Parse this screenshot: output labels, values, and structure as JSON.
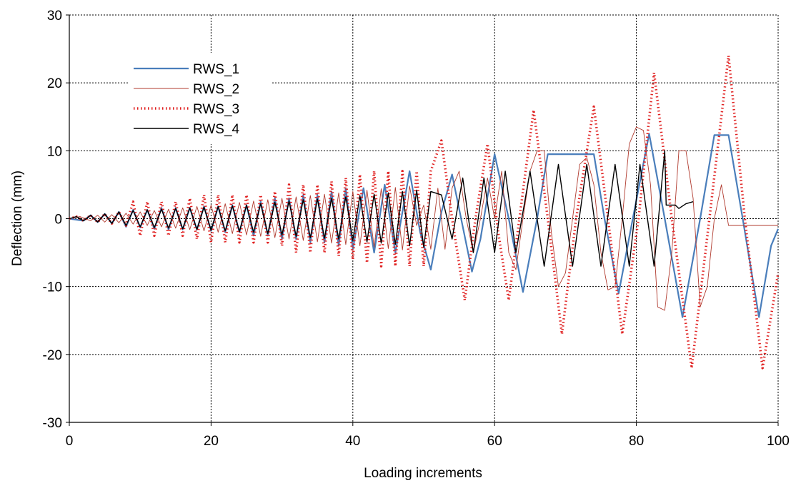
{
  "chart_data": {
    "type": "line",
    "title": "",
    "xlabel": "Loading increments",
    "ylabel": "Deflection (mm)",
    "xlim": [
      0,
      100
    ],
    "ylim": [
      -30,
      30
    ],
    "xticks": [
      0,
      20,
      40,
      60,
      80,
      100
    ],
    "yticks": [
      -30,
      -20,
      -10,
      0,
      10,
      20,
      30
    ],
    "grid": "dotted",
    "legend_position": "top-left",
    "series": [
      {
        "name": "RWS_1",
        "color": "#4a7ebb",
        "style": "solid",
        "x": [
          0,
          2,
          3,
          4,
          5,
          6,
          7,
          8,
          9,
          10,
          11,
          12,
          13,
          14,
          15,
          16,
          17,
          18,
          19,
          20,
          21,
          22,
          23,
          24,
          25,
          26,
          27,
          28,
          29,
          30,
          31,
          32,
          33,
          34,
          35,
          36,
          37,
          38,
          39,
          40,
          41.5,
          43,
          44.5,
          46,
          48,
          49.5,
          51,
          52.5,
          54,
          56.8,
          58,
          60,
          62,
          64,
          66,
          67.5,
          74,
          75.5,
          77.5,
          79.5,
          81.8,
          84,
          86.5,
          89,
          91,
          93,
          95,
          97.3,
          99,
          100
        ],
        "y": [
          0,
          -0.3,
          0.5,
          -0.5,
          0.7,
          -0.7,
          1,
          -1.2,
          1.3,
          -1.3,
          1.3,
          -1.5,
          1.6,
          -1.6,
          1.6,
          -1.6,
          1.6,
          -1.6,
          1.8,
          -1.8,
          1.8,
          -2,
          2,
          -2,
          2,
          -2.5,
          2.5,
          -2.5,
          3,
          -3,
          3,
          -3,
          3.5,
          -3.5,
          3.5,
          -3.5,
          4,
          -4,
          4.5,
          -4.5,
          4.5,
          -5,
          5,
          -5,
          7,
          -2,
          -7.5,
          1,
          6.5,
          -7.8,
          -3,
          9.5,
          0,
          -10.8,
          0,
          9.5,
          9.5,
          0,
          -11,
          0,
          12.5,
          0,
          -14.5,
          0,
          12.3,
          12.3,
          0,
          -14.5,
          -4,
          -1.5
        ]
      },
      {
        "name": "RWS_2",
        "color": "#b03a2e",
        "style": "thin",
        "x": [
          0,
          1.5,
          3,
          4,
          5,
          6,
          7,
          8,
          9,
          10,
          11,
          12,
          13,
          14,
          15,
          16,
          17,
          18,
          19,
          20,
          21,
          22,
          23,
          24,
          25,
          26,
          27,
          28,
          29,
          30,
          31,
          32,
          33,
          34,
          35,
          36,
          37,
          38,
          39,
          40,
          41,
          42,
          43,
          44,
          45,
          46,
          47,
          48,
          49,
          50,
          51,
          52,
          53,
          54,
          55,
          56,
          57,
          58,
          59,
          60,
          61,
          62,
          63,
          64,
          65,
          66,
          67,
          68,
          69,
          70,
          71,
          72,
          73,
          74,
          75,
          76,
          77,
          78,
          79,
          80,
          81,
          82,
          83,
          84,
          85,
          86,
          87,
          88,
          89,
          90,
          91,
          92,
          93,
          94,
          95,
          96,
          97,
          98,
          99,
          100
        ],
        "y": [
          0,
          0.3,
          -0.3,
          0.5,
          -0.5,
          0.6,
          -0.6,
          0.8,
          -0.8,
          1,
          -1,
          1.2,
          -1.2,
          1.4,
          -1.4,
          1.6,
          -1.6,
          1.8,
          -1.8,
          2,
          -2,
          2.2,
          -2.2,
          2.4,
          -2.4,
          2.6,
          -2.6,
          2.8,
          -2.8,
          3,
          -3,
          3.2,
          -3.2,
          3.4,
          -3.4,
          3.6,
          -3.6,
          3.8,
          -3.8,
          4,
          -4,
          4.2,
          -4.2,
          4.4,
          -4.4,
          4.6,
          -4.6,
          4.8,
          -1,
          2,
          -4.5,
          4.5,
          -4.5,
          4.5,
          7,
          0,
          -5,
          0,
          6,
          0,
          7,
          -5,
          -7.5,
          0,
          7,
          10,
          10,
          -2,
          -10,
          -8,
          0,
          8,
          9,
          5,
          -5,
          -10.5,
          -10,
          0,
          11,
          13.5,
          13,
          5,
          -13,
          -13.5,
          -5,
          10,
          10,
          3,
          -13,
          -10,
          0,
          5,
          -1,
          -1,
          -1,
          -1,
          -1,
          -1,
          -1,
          -1
        ]
      },
      {
        "name": "RWS_3",
        "color": "#e02020",
        "style": "dotted",
        "x": [
          0,
          1,
          2,
          3,
          4,
          5,
          6,
          7,
          8,
          9,
          10,
          11,
          12,
          13,
          14,
          15,
          16,
          17,
          18,
          19,
          20,
          21,
          22,
          23,
          24,
          25,
          26,
          27,
          28,
          29,
          30,
          31,
          32,
          33,
          34,
          35,
          36,
          37,
          38,
          39,
          40,
          41,
          42,
          43,
          44,
          45,
          46,
          47,
          48,
          49,
          50,
          51,
          52.5,
          54,
          55.8,
          57.3,
          59,
          60.5,
          62,
          63.5,
          65.5,
          67.5,
          69.5,
          71.5,
          74,
          76,
          78,
          80.3,
          82.5,
          85,
          87.8,
          90.3,
          93,
          95.3,
          97.8,
          100
        ],
        "y": [
          0,
          0.3,
          -0.3,
          0.5,
          -0.5,
          0.7,
          -0.7,
          1,
          -1,
          2.5,
          -2.5,
          2.5,
          -2.5,
          2.5,
          -2.5,
          2.5,
          -2.5,
          3,
          -3,
          3.5,
          -3.5,
          3.5,
          -3.5,
          3.5,
          -3.5,
          3.5,
          -3.5,
          3.5,
          -3.5,
          4,
          -4,
          5,
          -5,
          5,
          -5,
          5,
          -5,
          5.5,
          -5.5,
          6,
          -6,
          6.5,
          -6.5,
          7,
          -7,
          7,
          -7,
          7,
          -7,
          7,
          -7,
          7,
          11.5,
          0,
          -12,
          0,
          11,
          -2,
          -12,
          0,
          16,
          0,
          -17,
          0,
          16.5,
          0,
          -17,
          0,
          21.5,
          0,
          -22,
          0,
          24,
          0,
          -22,
          -8
        ]
      },
      {
        "name": "RWS_4",
        "color": "#000000",
        "style": "solid",
        "x": [
          0,
          1,
          2,
          3,
          4,
          5,
          6,
          7,
          8,
          9,
          10,
          11,
          12,
          13,
          14,
          15,
          16,
          17,
          18,
          19,
          20,
          21,
          22,
          23,
          24,
          25,
          26,
          27,
          28,
          29,
          30,
          31,
          32,
          33,
          34,
          35,
          36,
          37,
          38,
          39,
          40,
          41,
          42,
          43,
          44,
          45,
          46,
          47,
          48,
          49,
          50,
          51,
          52.5,
          54,
          55.5,
          57,
          58.5,
          60,
          61.5,
          63,
          65,
          67,
          69,
          71,
          73,
          75,
          77,
          79,
          80.5,
          82.5,
          84,
          84.2,
          85.5,
          86,
          87,
          88
        ],
        "y": [
          0,
          0.3,
          -0.3,
          0.5,
          -0.5,
          0.7,
          -0.7,
          1,
          -1,
          1.2,
          -1.2,
          1.3,
          -1.3,
          1.4,
          -1.4,
          1.5,
          -1.5,
          1.6,
          -1.6,
          1.7,
          -1.7,
          1.8,
          -1.8,
          1.9,
          -1.9,
          2,
          -2,
          2.2,
          -2.2,
          2.4,
          -2.4,
          2.6,
          -2.6,
          2.8,
          -2.8,
          2.9,
          -2.9,
          3,
          -3,
          3.2,
          -3.2,
          3.4,
          -3.4,
          3.6,
          -3.6,
          3.8,
          -3.8,
          4,
          -4,
          4.2,
          -4.2,
          4,
          3.5,
          -3,
          6,
          -5,
          6,
          -5,
          7,
          -5,
          7,
          -7,
          8,
          -7,
          8,
          -7,
          8,
          -7,
          8,
          -7,
          10,
          2,
          2,
          1.5,
          2.2,
          2.5
        ]
      }
    ]
  }
}
